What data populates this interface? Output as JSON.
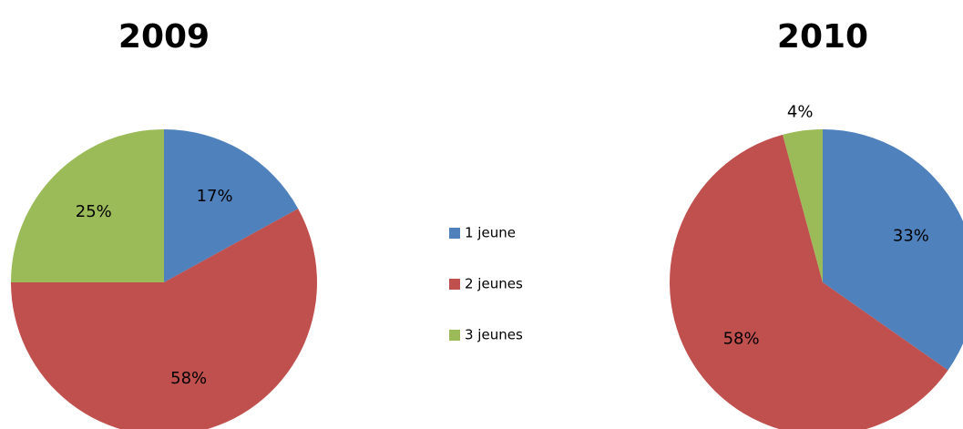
{
  "chart_data": [
    {
      "type": "pie",
      "title": "2009",
      "categories": [
        "1 jeune",
        "2 jeunes",
        "3 jeunes"
      ],
      "values": [
        17,
        58,
        25
      ],
      "value_labels": [
        "17%",
        "58%",
        "25%"
      ],
      "colors": [
        "#4f81bd",
        "#c0504d",
        "#9bbb59"
      ],
      "legend": "center"
    },
    {
      "type": "pie",
      "title": "2010",
      "categories": [
        "1 jeune",
        "2 jeunes",
        "3 jeunes"
      ],
      "values": [
        33,
        58,
        4
      ],
      "value_labels": [
        "33%",
        "58%",
        "4%"
      ],
      "colors": [
        "#4f81bd",
        "#c0504d",
        "#9bbb59"
      ]
    }
  ]
}
